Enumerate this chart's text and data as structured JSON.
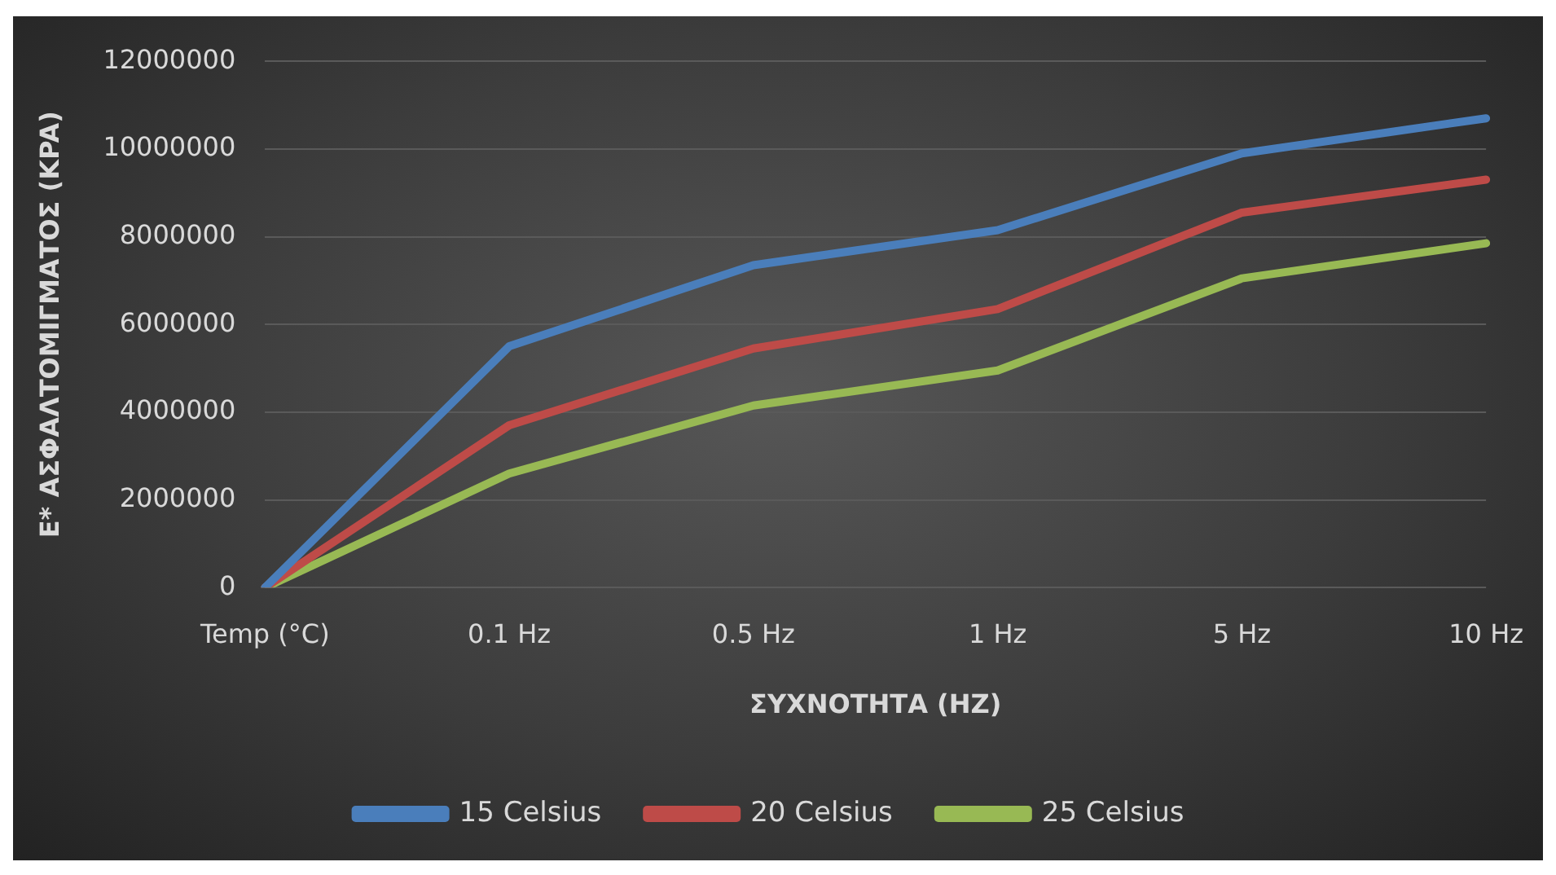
{
  "chart_data": {
    "type": "line",
    "xlabel": "ΣΥΧΝΟΤΗΤΑ (HZ)",
    "ylabel": "E* ΑΣΦΑΛΤΟΜΙΓΜΑΤΟΣ (KPA)",
    "categories": [
      "Temp (°C)",
      "0.1 Hz",
      "0.5 Hz",
      "1 Hz",
      "5 Hz",
      "10 Hz"
    ],
    "series": [
      {
        "name": "15 Celsius",
        "color": "#4a7ebb",
        "values": [
          0,
          5500000,
          7350000,
          8150000,
          9900000,
          10700000
        ]
      },
      {
        "name": "20 Celsius",
        "color": "#be4b48",
        "values": [
          0,
          3700000,
          5450000,
          6350000,
          8550000,
          9300000
        ]
      },
      {
        "name": "25 Celsius",
        "color": "#98b954",
        "values": [
          0,
          2600000,
          4150000,
          4950000,
          7050000,
          7850000
        ]
      }
    ],
    "ylim": [
      0,
      12000000
    ],
    "yticks": [
      0,
      2000000,
      4000000,
      6000000,
      8000000,
      10000000,
      12000000
    ],
    "grid": "y",
    "legend": "bottom",
    "marker": "none",
    "line_style": "solid"
  }
}
